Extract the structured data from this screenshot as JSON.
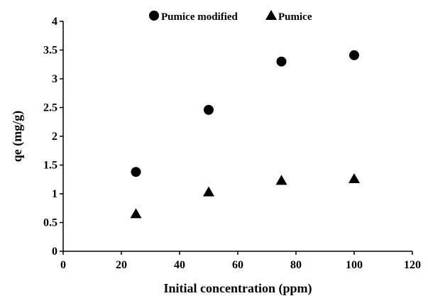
{
  "chart_data": {
    "type": "scatter",
    "title": "",
    "xlabel": "Initial concentration (ppm)",
    "ylabel": "qe (mg/g)",
    "xlim": [
      0,
      120
    ],
    "ylim": [
      0,
      4
    ],
    "xticks": [
      "0",
      "20",
      "40",
      "60",
      "80",
      "100",
      "120"
    ],
    "yticks": [
      "0",
      "0.5",
      "1",
      "1.5",
      "2",
      "2.5",
      "3",
      "3.5",
      "4"
    ],
    "grid": false,
    "legend_position": "top",
    "series": [
      {
        "name": "Pumice modified",
        "marker": "circle",
        "color": "#000000",
        "x": [
          25,
          50,
          75,
          100
        ],
        "y": [
          1.38,
          2.46,
          3.3,
          3.41
        ]
      },
      {
        "name": "Pumice",
        "marker": "triangle",
        "color": "#000000",
        "x": [
          25,
          50,
          75,
          100
        ],
        "y": [
          0.65,
          1.03,
          1.23,
          1.26
        ]
      }
    ]
  }
}
